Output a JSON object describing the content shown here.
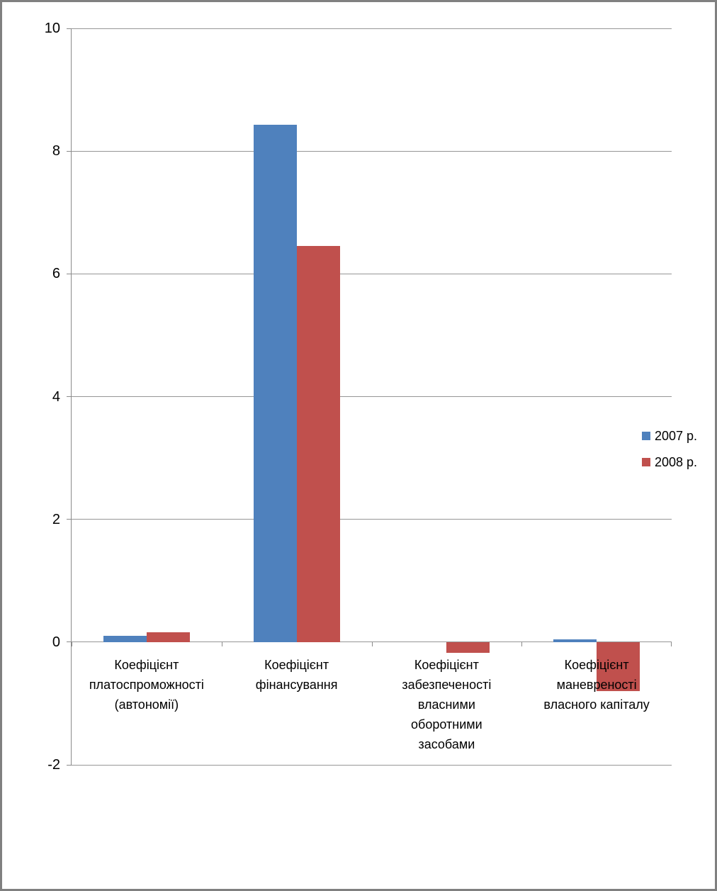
{
  "chart_data": {
    "type": "bar",
    "title": "",
    "xlabel": "",
    "ylabel": "",
    "categories": [
      "Коефіцієнт\nплатоспроможності\n(автономії)",
      "Коефіцієнт\nфінансування",
      "Коефіцієнт\nзабезпеченості\nвласними\nоборотними\nзасобами",
      "Коефіцієнт\nманевреності\nвласного капіталу"
    ],
    "series": [
      {
        "name": "2007 р.",
        "color": "#4F81BD",
        "values": [
          0.1,
          8.43,
          0,
          0.04
        ]
      },
      {
        "name": "2008 р.",
        "color": "#C0504D",
        "values": [
          0.16,
          6.46,
          -0.18,
          -0.8
        ]
      }
    ],
    "ylim": [
      -2,
      10
    ],
    "yticks": [
      10,
      8,
      6,
      4,
      2,
      0,
      -2
    ],
    "grid": true,
    "legend_position": "right"
  },
  "colors": {
    "gridline": "#969696",
    "axis": "#8a8a8a",
    "frame_border": "#808080",
    "background": "#ffffff",
    "text": "#000000"
  }
}
